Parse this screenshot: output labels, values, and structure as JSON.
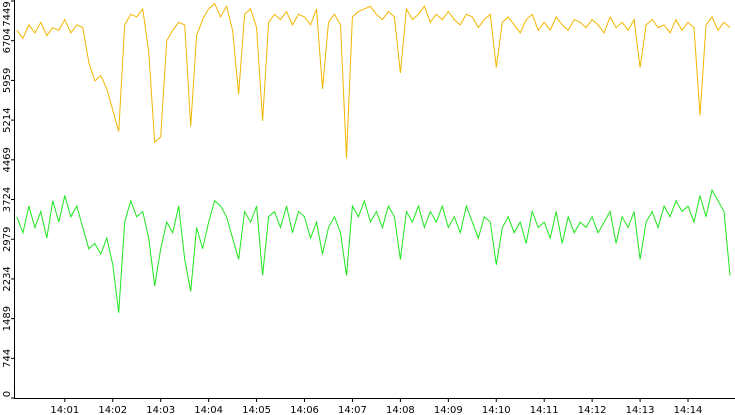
{
  "chart_data": {
    "type": "line",
    "x": [
      0,
      0.125,
      0.25,
      0.375,
      0.5,
      0.625,
      0.75,
      0.875,
      1,
      1.125,
      1.25,
      1.375,
      1.5,
      1.625,
      1.75,
      1.875,
      2,
      2.125,
      2.25,
      2.375,
      2.5,
      2.625,
      2.75,
      2.875,
      3,
      3.125,
      3.25,
      3.375,
      3.5,
      3.625,
      3.75,
      3.875,
      4,
      4.125,
      4.25,
      4.375,
      4.5,
      4.625,
      4.75,
      4.875,
      5,
      5.125,
      5.25,
      5.375,
      5.5,
      5.625,
      5.75,
      5.875,
      6,
      6.125,
      6.25,
      6.375,
      6.5,
      6.625,
      6.75,
      6.875,
      7,
      7.125,
      7.25,
      7.375,
      7.5,
      7.625,
      7.75,
      7.875,
      8,
      8.125,
      8.25,
      8.375,
      8.5,
      8.625,
      8.75,
      8.875,
      9,
      9.125,
      9.25,
      9.375,
      9.5,
      9.625,
      9.75,
      9.875,
      10,
      10.125,
      10.25,
      10.375,
      10.5,
      10.625,
      10.75,
      10.875,
      11,
      11.125,
      11.25,
      11.375,
      11.5,
      11.625,
      11.75,
      11.875,
      12,
      12.125,
      12.25,
      12.375,
      12.5,
      12.625,
      12.75,
      12.875,
      13,
      13.125,
      13.25,
      13.375,
      13.5,
      13.625,
      13.75,
      13.875,
      14,
      14.125,
      14.25,
      14.375,
      14.5,
      14.625,
      14.75,
      14.875
    ],
    "series": [
      {
        "color": "#f2b600",
        "values": [
          6900,
          6750,
          7000,
          6850,
          7050,
          6800,
          6950,
          6900,
          7100,
          6850,
          7000,
          6950,
          6300,
          5950,
          6050,
          5800,
          5400,
          5000,
          7000,
          7200,
          7150,
          7300,
          6500,
          4800,
          4900,
          6700,
          6900,
          7050,
          7000,
          5100,
          6800,
          7100,
          7300,
          7400,
          7150,
          7350,
          6900,
          5700,
          7200,
          7300,
          6950,
          5200,
          7050,
          7200,
          7100,
          7250,
          7000,
          7200,
          7150,
          7000,
          7300,
          5800,
          7050,
          7200,
          7000,
          4500,
          7150,
          7250,
          7300,
          7350,
          7200,
          7100,
          7250,
          7150,
          6100,
          7300,
          7100,
          7200,
          7350,
          7050,
          7200,
          7100,
          7250,
          7100,
          7000,
          7200,
          7150,
          6950,
          7100,
          7200,
          6200,
          7050,
          7150,
          7000,
          6850,
          7100,
          7200,
          6900,
          7050,
          6900,
          7150,
          7000,
          6900,
          7100,
          7050,
          6950,
          7100,
          7000,
          6850,
          7150,
          6950,
          7050,
          6900,
          7100,
          6200,
          7000,
          7100,
          6950,
          7000,
          6850,
          7100,
          6900,
          7050,
          6950,
          5300,
          7000,
          7150,
          6900,
          7050,
          6950
        ]
      },
      {
        "color": "#1ee61e",
        "values": [
          3400,
          3100,
          3600,
          3200,
          3500,
          3000,
          3700,
          3300,
          3800,
          3400,
          3600,
          3200,
          2800,
          2900,
          2700,
          3000,
          2500,
          1600,
          3300,
          3700,
          3400,
          3500,
          3000,
          2100,
          2800,
          3300,
          3100,
          3600,
          2600,
          2000,
          3200,
          2800,
          3300,
          3700,
          3600,
          3400,
          3000,
          2600,
          3500,
          3300,
          3600,
          2300,
          3400,
          3500,
          3200,
          3600,
          3100,
          3500,
          3400,
          3000,
          3300,
          2700,
          3200,
          3400,
          3100,
          2300,
          3600,
          3400,
          3700,
          3300,
          3500,
          3200,
          3600,
          3400,
          2600,
          3500,
          3300,
          3600,
          3200,
          3500,
          3300,
          3600,
          3200,
          3400,
          3100,
          3600,
          3300,
          3000,
          3400,
          3300,
          2500,
          3200,
          3400,
          3100,
          3300,
          2900,
          3500,
          3200,
          3300,
          3000,
          3500,
          2900,
          3400,
          3100,
          3300,
          3200,
          3400,
          3100,
          3300,
          3500,
          2900,
          3400,
          3200,
          3500,
          2600,
          3300,
          3500,
          3200,
          3600,
          3400,
          3700,
          3500,
          3600,
          3300,
          3800,
          3400,
          3900,
          3700,
          3500,
          2300
        ]
      }
    ],
    "xlim": [
      -0.06,
      14.98
    ],
    "xticks": [
      {
        "value": 1,
        "label": "14:01"
      },
      {
        "value": 2,
        "label": "14:02"
      },
      {
        "value": 3,
        "label": "14:03"
      },
      {
        "value": 4,
        "label": "14:04"
      },
      {
        "value": 5,
        "label": "14:05"
      },
      {
        "value": 6,
        "label": "14:06"
      },
      {
        "value": 7,
        "label": "14:07"
      },
      {
        "value": 8,
        "label": "14:08"
      },
      {
        "value": 9,
        "label": "14:09"
      },
      {
        "value": 10,
        "label": "14:10"
      },
      {
        "value": 11,
        "label": "14:11"
      },
      {
        "value": 12,
        "label": "14:12"
      },
      {
        "value": 13,
        "label": "14:13"
      },
      {
        "value": 14,
        "label": "14:14"
      }
    ],
    "ylim": [
      0,
      7449
    ],
    "yticks": [
      0,
      744,
      1489,
      2234,
      2979,
      3724,
      4469,
      5214,
      5959,
      6704,
      7449
    ]
  }
}
